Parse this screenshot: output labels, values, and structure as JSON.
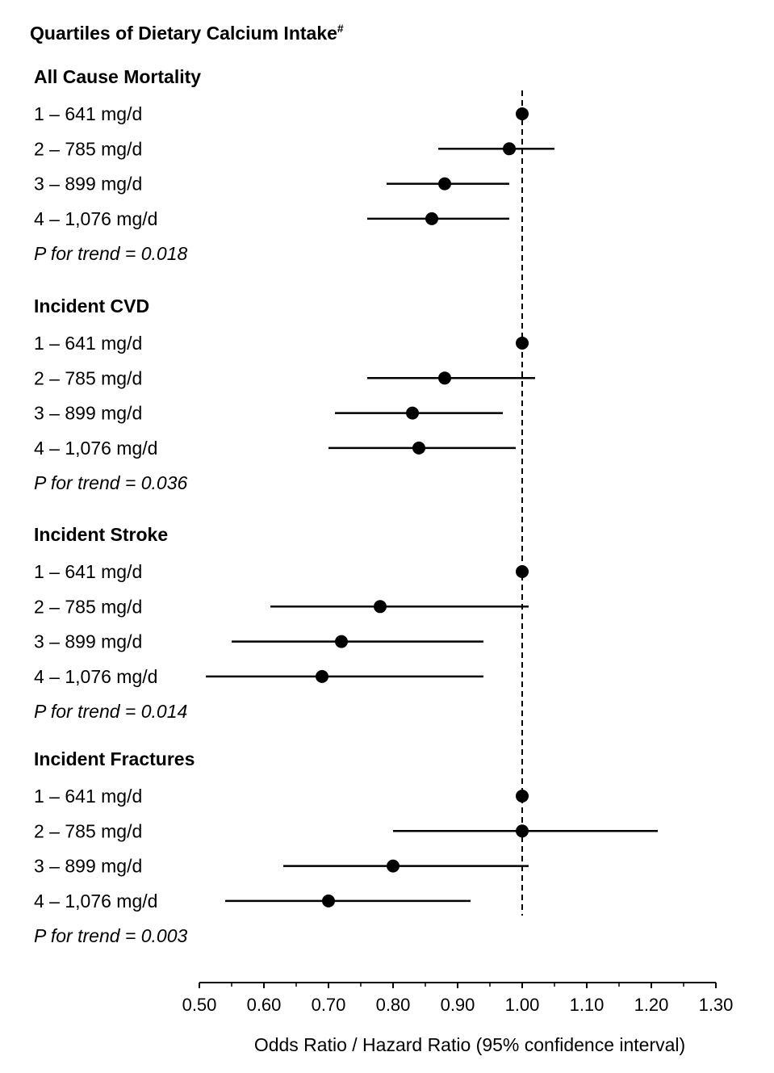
{
  "chart_data": {
    "type": "forest",
    "title": "Quartiles of Dietary Calcium Intake",
    "title_sup": "#",
    "xlabel": "Odds Ratio / Hazard Ratio (95% confidence interval)",
    "xlim": [
      0.5,
      1.3
    ],
    "xticks": [
      "0.50",
      "0.60",
      "0.70",
      "0.80",
      "0.90",
      "1.00",
      "1.10",
      "1.20",
      "1.30"
    ],
    "reference_line": 1.0,
    "groups": [
      {
        "name": "All Cause Mortality",
        "trend": "P for trend = 0.018",
        "rows": [
          {
            "label": "1 – 641 mg/d",
            "est": 1.0,
            "lo": 1.0,
            "hi": 1.0
          },
          {
            "label": "2 – 785 mg/d",
            "est": 0.98,
            "lo": 0.87,
            "hi": 1.05
          },
          {
            "label": "3 – 899 mg/d",
            "est": 0.88,
            "lo": 0.79,
            "hi": 0.98
          },
          {
            "label": "4 – 1,076 mg/d",
            "est": 0.86,
            "lo": 0.76,
            "hi": 0.98
          }
        ]
      },
      {
        "name": "Incident CVD",
        "trend": "P for trend = 0.036",
        "rows": [
          {
            "label": "1 – 641 mg/d",
            "est": 1.0,
            "lo": 1.0,
            "hi": 1.0
          },
          {
            "label": "2 – 785 mg/d",
            "est": 0.88,
            "lo": 0.76,
            "hi": 1.02
          },
          {
            "label": "3 – 899 mg/d",
            "est": 0.83,
            "lo": 0.71,
            "hi": 0.97
          },
          {
            "label": "4 – 1,076 mg/d",
            "est": 0.84,
            "lo": 0.7,
            "hi": 0.99
          }
        ]
      },
      {
        "name": "Incident Stroke",
        "trend": "P for trend = 0.014",
        "rows": [
          {
            "label": "1 – 641 mg/d",
            "est": 1.0,
            "lo": 1.0,
            "hi": 1.0
          },
          {
            "label": "2 – 785 mg/d",
            "est": 0.78,
            "lo": 0.61,
            "hi": 1.01
          },
          {
            "label": "3 – 899 mg/d",
            "est": 0.72,
            "lo": 0.55,
            "hi": 0.94
          },
          {
            "label": "4 – 1,076 mg/d",
            "est": 0.69,
            "lo": 0.51,
            "hi": 0.94
          }
        ]
      },
      {
        "name": "Incident Fractures",
        "trend": "P for trend = 0.003",
        "rows": [
          {
            "label": "1 – 641 mg/d",
            "est": 1.0,
            "lo": 1.0,
            "hi": 1.0
          },
          {
            "label": "2 – 785 mg/d",
            "est": 1.0,
            "lo": 0.8,
            "hi": 1.21
          },
          {
            "label": "3 – 899 mg/d",
            "est": 0.8,
            "lo": 0.63,
            "hi": 1.01
          },
          {
            "label": "4 – 1,076 mg/d",
            "est": 0.7,
            "lo": 0.54,
            "hi": 0.92
          }
        ]
      }
    ]
  }
}
